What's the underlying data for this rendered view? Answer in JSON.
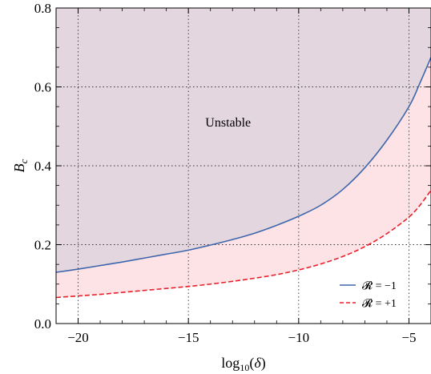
{
  "chart_data": {
    "type": "area",
    "xlabel": "log10(δ)",
    "ylabel": "Bc",
    "xlim": [
      -21,
      -4
    ],
    "ylim": [
      0,
      0.8
    ],
    "xticks": [
      -20,
      -15,
      -10,
      -5
    ],
    "yticks": [
      0.0,
      0.2,
      0.4,
      0.6,
      0.8
    ],
    "xtick_labels": [
      "−20",
      "−15",
      "−10",
      "−5"
    ],
    "ytick_labels": [
      "0.0",
      "0.2",
      "0.4",
      "0.6",
      "0.8"
    ],
    "grid": "dotted, vertical lines at x ticks and horizontal lines at y ticks",
    "annotations": [
      {
        "text": "Unstable",
        "x": -13.2,
        "y": 0.5
      }
    ],
    "legend_position": "bottom-right",
    "series": [
      {
        "name": "𝓡 = −1",
        "color": "#3e66ad",
        "style": "solid",
        "x": [
          -21,
          -20,
          -19,
          -18,
          -17,
          -16,
          -15,
          -14,
          -13,
          -12,
          -11,
          -10,
          -9,
          -8,
          -7,
          -6,
          -5,
          -4.5,
          -4
        ],
        "y": [
          0.13,
          0.138,
          0.147,
          0.156,
          0.166,
          0.176,
          0.186,
          0.199,
          0.213,
          0.229,
          0.249,
          0.272,
          0.3,
          0.34,
          0.395,
          0.465,
          0.55,
          0.61,
          0.675
        ]
      },
      {
        "name": "𝓡 = +1",
        "color": "#e8202a",
        "style": "dashed",
        "x": [
          -21,
          -20,
          -19,
          -18,
          -17,
          -16,
          -15,
          -14,
          -13,
          -12,
          -11,
          -10,
          -9,
          -8,
          -7,
          -6,
          -5,
          -4.5,
          -4
        ],
        "y": [
          0.066,
          0.07,
          0.074,
          0.079,
          0.084,
          0.089,
          0.094,
          0.1,
          0.107,
          0.115,
          0.124,
          0.136,
          0.151,
          0.17,
          0.195,
          0.228,
          0.27,
          0.3,
          0.338
        ]
      }
    ],
    "regions": [
      {
        "name": "unstable",
        "between": [
          "𝓡 = −1",
          "ylim_top"
        ],
        "color": "#e4d6de"
      },
      {
        "name": "band",
        "between": [
          "𝓡 = +1",
          "𝓡 = −1"
        ],
        "color": "#fde3e6"
      }
    ]
  }
}
